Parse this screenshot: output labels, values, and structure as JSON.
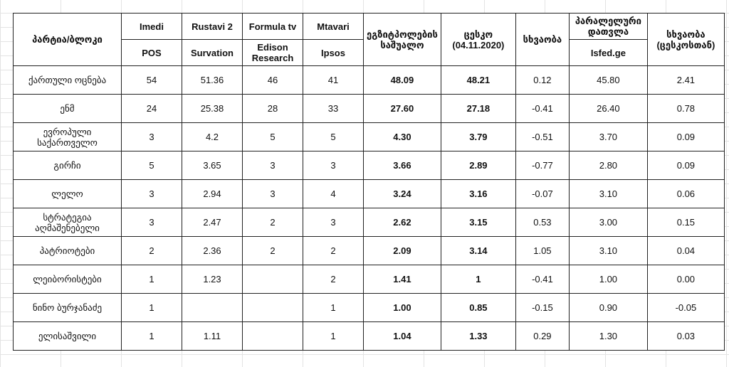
{
  "header": {
    "party": "პარტია/ბლოკი",
    "pollsters": [
      {
        "name": "Imedi",
        "firm": "POS"
      },
      {
        "name": "Rustavi 2",
        "firm": "Survation"
      },
      {
        "name": "Formula tv",
        "firm": "Edison Research"
      },
      {
        "name": "Mtavari",
        "firm": "Ipsos"
      }
    ],
    "exit_poll_average": "ეგზიტპოლების საშუალო",
    "cec": "ცესკო (04.11.2020)",
    "difference": "სხვაობა",
    "parallel_count": "პარალელური დათვლა",
    "parallel_source": "Isfed.ge",
    "difference_cec": "სხვაობა (ცესკოსთან)"
  },
  "rows": [
    {
      "party": "ქართული ოცნება",
      "values": [
        "54",
        "51.36",
        "46",
        "41",
        "48.09",
        "48.21",
        "0.12",
        "45.80",
        "2.41"
      ]
    },
    {
      "party": "ენმ",
      "values": [
        "24",
        "25.38",
        "28",
        "33",
        "27.60",
        "27.18",
        "-0.41",
        "26.40",
        "0.78"
      ]
    },
    {
      "party": "ევროპული საქართველო",
      "values": [
        "3",
        "4.2",
        "5",
        "5",
        "4.30",
        "3.79",
        "-0.51",
        "3.70",
        "0.09"
      ]
    },
    {
      "party": "გირჩი",
      "values": [
        "5",
        "3.65",
        "3",
        "3",
        "3.66",
        "2.89",
        "-0.77",
        "2.80",
        "0.09"
      ]
    },
    {
      "party": "ლელო",
      "values": [
        "3",
        "2.94",
        "3",
        "4",
        "3.24",
        "3.16",
        "-0.07",
        "3.10",
        "0.06"
      ]
    },
    {
      "party": "სტრატეგია აღმაშენებელი",
      "values": [
        "3",
        "2.47",
        "2",
        "3",
        "2.62",
        "3.15",
        "0.53",
        "3.00",
        "0.15"
      ]
    },
    {
      "party": "პატრიოტები",
      "values": [
        "2",
        "2.36",
        "2",
        "2",
        "2.09",
        "3.14",
        "1.05",
        "3.10",
        "0.04"
      ]
    },
    {
      "party": "ლეიბორისტები",
      "values": [
        "1",
        "1.23",
        null,
        "2",
        "1.41",
        "1",
        "-0.41",
        "1.00",
        "0.00"
      ]
    },
    {
      "party": "ნინო ბურჯანაძე",
      "values": [
        "1",
        null,
        null,
        "1",
        "1.00",
        "0.85",
        "-0.15",
        "0.90",
        "-0.05"
      ]
    },
    {
      "party": "ელისაშვილი",
      "values": [
        "1",
        "1.11",
        null,
        "1",
        "1.04",
        "1.33",
        "0.29",
        "1.30",
        "0.03"
      ]
    }
  ]
}
